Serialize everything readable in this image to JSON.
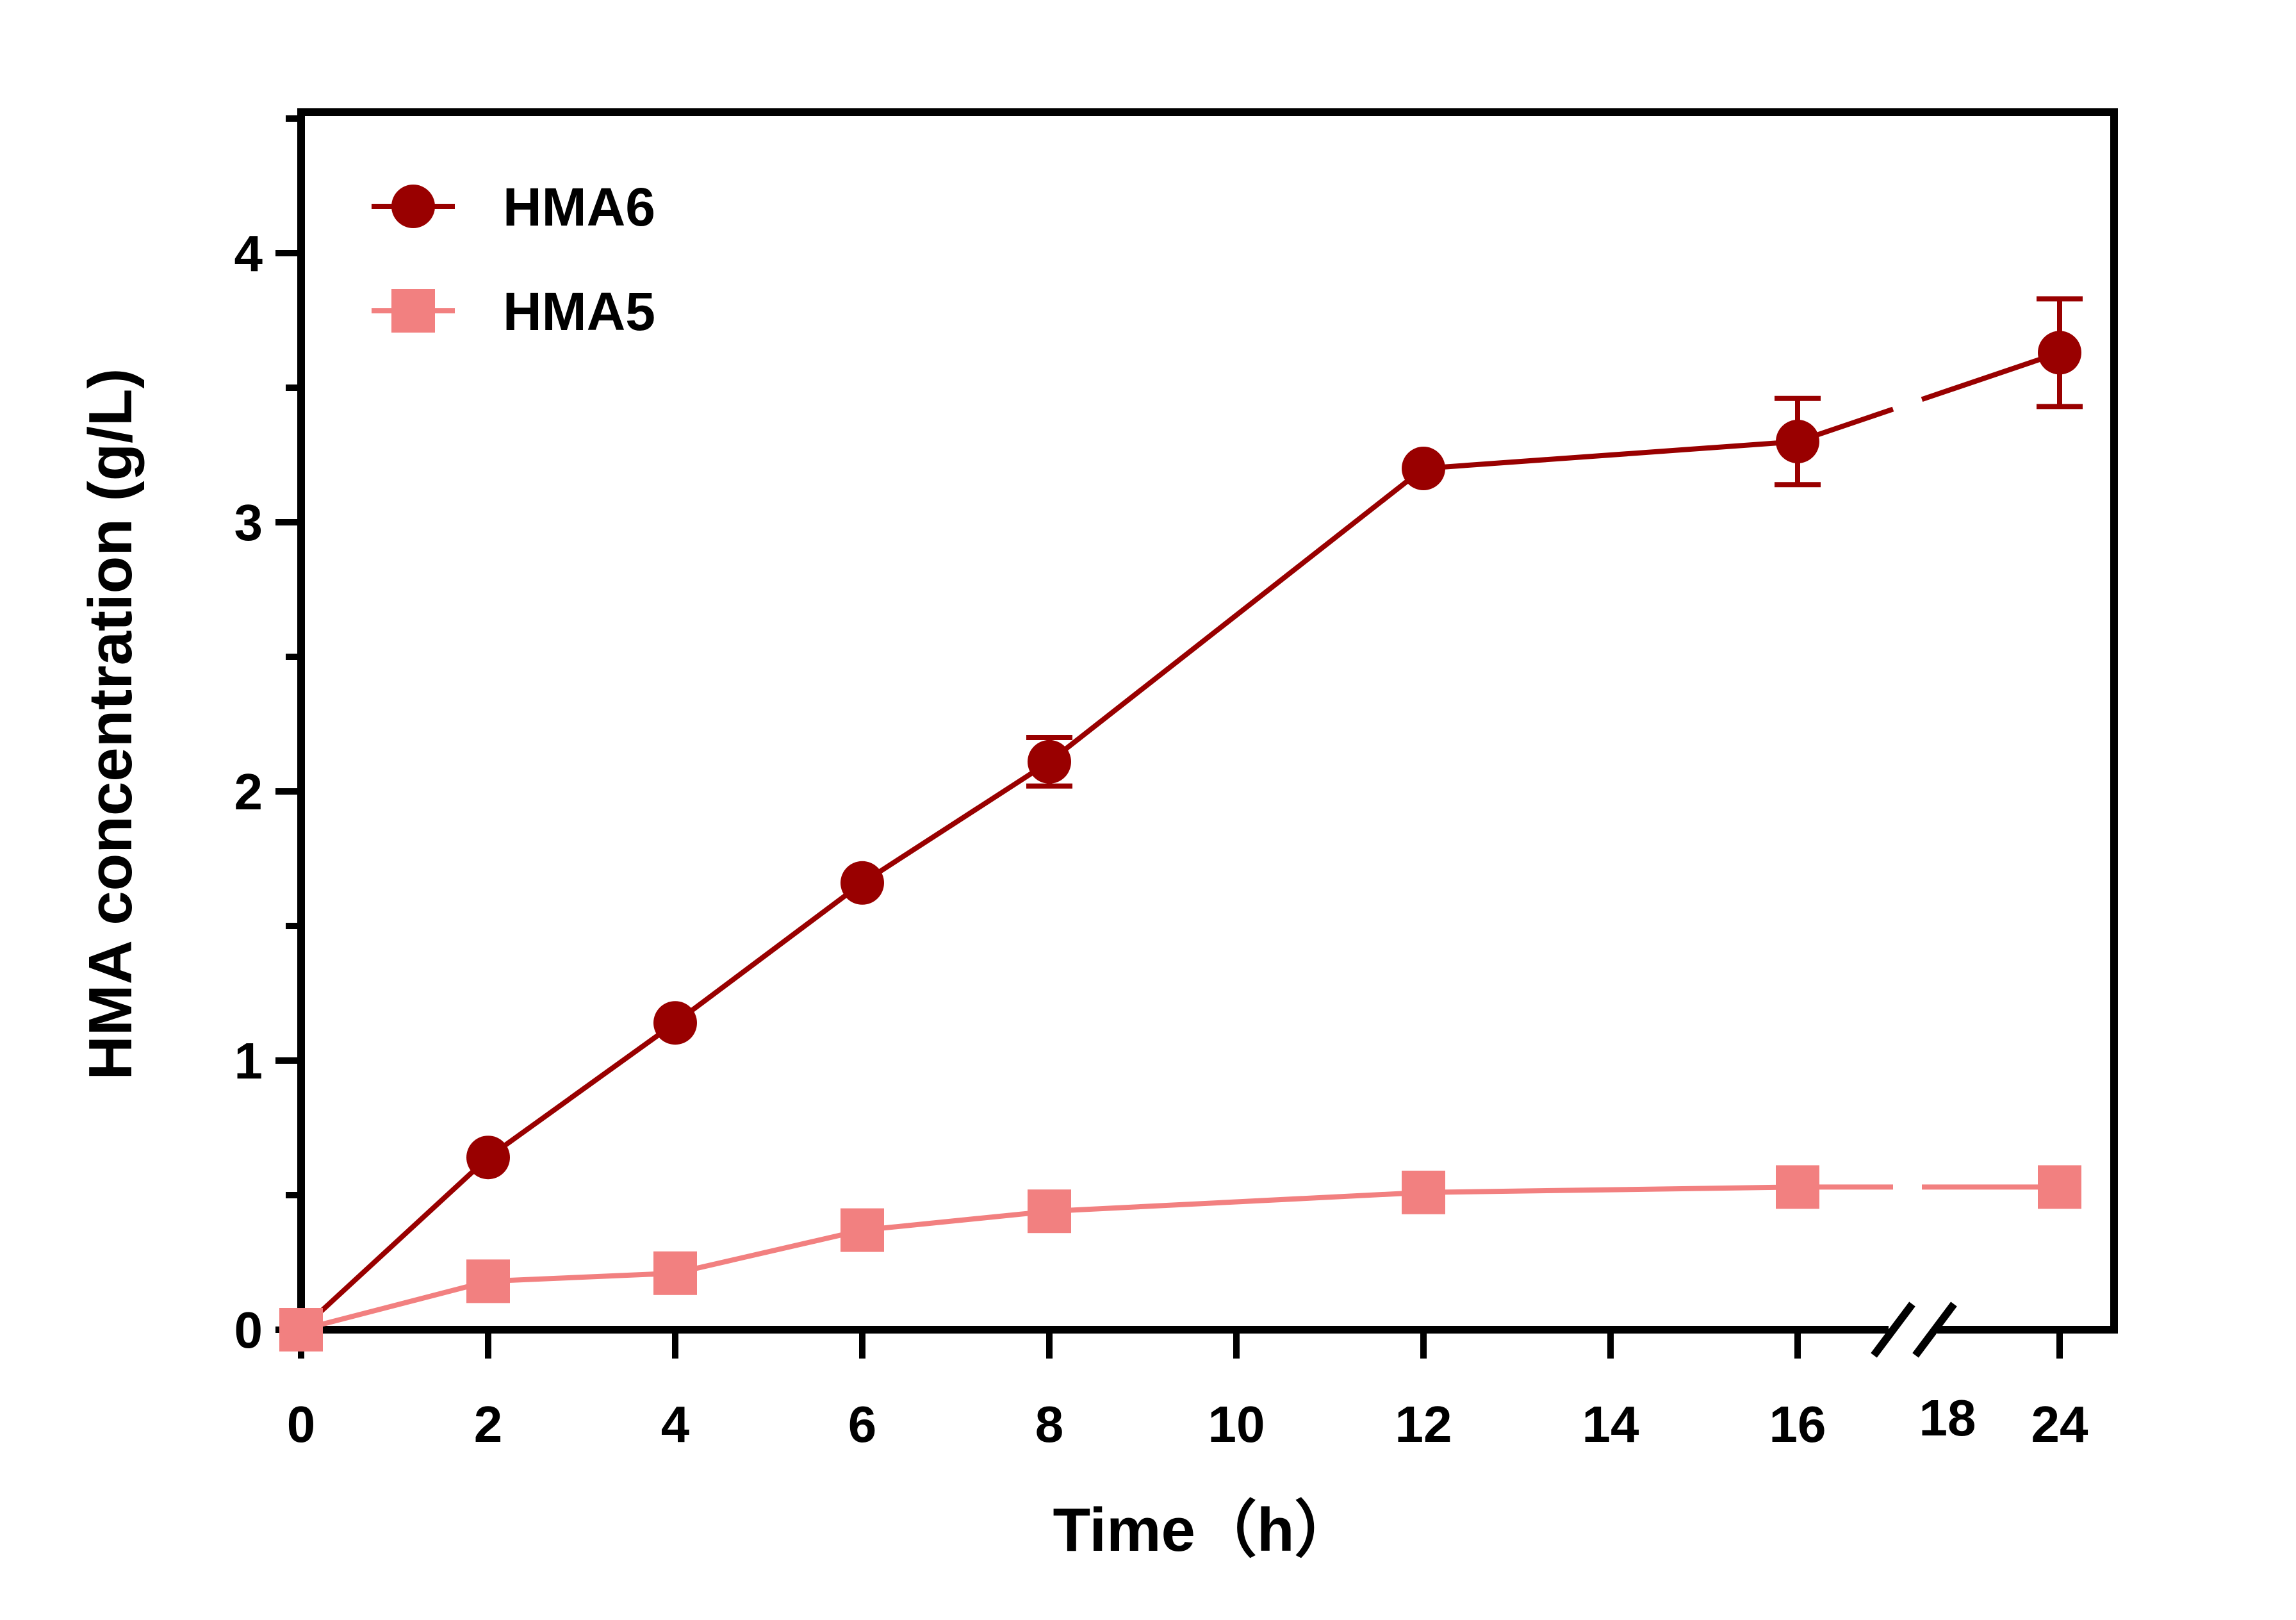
{
  "chart_data": {
    "type": "line",
    "title": "",
    "xlabel": "Time（h）",
    "ylabel": "HMA concentration (g/L)",
    "ylim": [
      0,
      4.5
    ],
    "y_ticks": [
      "0",
      "1",
      "2",
      "3",
      "4"
    ],
    "x_ticks": [
      "0",
      "2",
      "4",
      "6",
      "8",
      "10",
      "12",
      "14",
      "16",
      "18",
      "24"
    ],
    "x_axis_break": "between 16 and 24",
    "legend_position": "top-left",
    "grid": false,
    "series": [
      {
        "name": "HMA6",
        "color": "#990000",
        "marker": "circle",
        "x": [
          "0",
          "2",
          "4",
          "6",
          "8",
          "12",
          "16",
          "24"
        ],
        "values": [
          0,
          0.64,
          1.14,
          1.66,
          2.11,
          3.2,
          3.3,
          3.63
        ],
        "errors": [
          0,
          0,
          0,
          0,
          0.09,
          0,
          0.16,
          0.2
        ]
      },
      {
        "name": "HMA5",
        "color": "#F28080",
        "marker": "square",
        "x": [
          "0",
          "2",
          "4",
          "6",
          "8",
          "12",
          "16",
          "24"
        ],
        "values": [
          0,
          0.18,
          0.21,
          0.37,
          0.44,
          0.51,
          0.53,
          0.53
        ],
        "errors": [
          0,
          0,
          0,
          0,
          0,
          0,
          0,
          0
        ]
      }
    ]
  }
}
